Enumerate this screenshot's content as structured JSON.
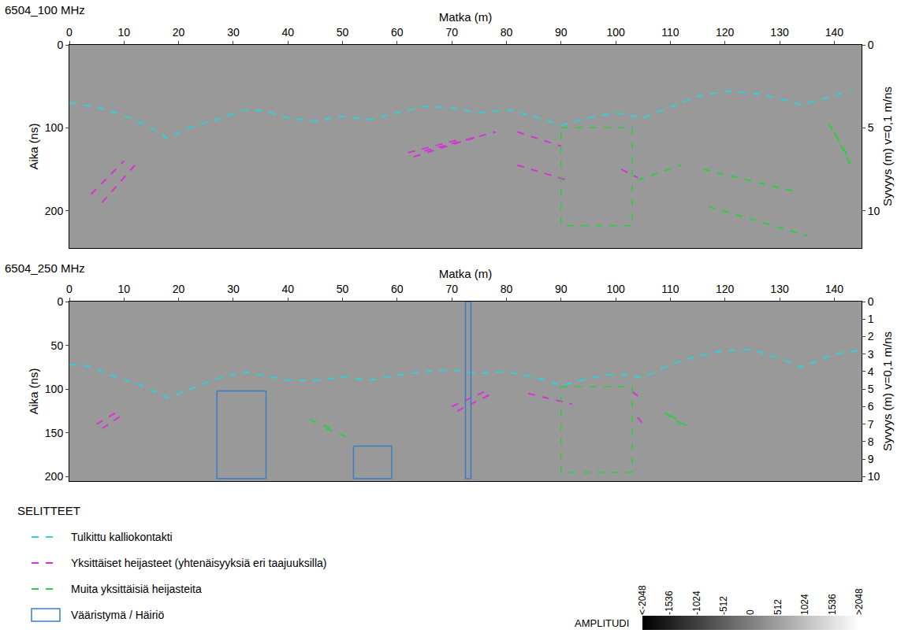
{
  "chart_data": [
    {
      "type": "radargram",
      "title": "6504_100 MHz",
      "x_label": "Matka (m)",
      "y_label": "Aika (ns)",
      "y2_label": "Syvyys (m) v=0,1 m/ns",
      "xlim": [
        0,
        145
      ],
      "xticks": [
        0,
        10,
        20,
        30,
        40,
        50,
        60,
        70,
        80,
        90,
        100,
        110,
        120,
        130,
        140
      ],
      "ylim": [
        0,
        245
      ],
      "yticks": [
        0,
        100,
        200
      ],
      "y2lim": [
        0,
        12.25
      ],
      "y2ticks": [
        0,
        5,
        10
      ],
      "grid": false,
      "series": [
        {
          "name": "Tulkittu kalliokontakti",
          "type": "line",
          "color": "#33d1d6",
          "line_style": "dashed",
          "x": [
            0,
            5,
            10,
            15,
            18,
            22,
            27,
            32,
            36,
            40,
            45,
            50,
            55,
            60,
            65,
            70,
            75,
            80,
            85,
            90,
            95,
            100,
            105,
            110,
            115,
            120,
            125,
            130,
            134,
            138,
            143
          ],
          "y": [
            70,
            75,
            85,
            100,
            113,
            100,
            90,
            78,
            80,
            88,
            92,
            86,
            90,
            82,
            74,
            76,
            82,
            78,
            86,
            97,
            88,
            82,
            88,
            75,
            62,
            56,
            58,
            65,
            72,
            65,
            55
          ]
        },
        {
          "name": "Yksittäiset heijasteet (yhtenäisyyksiä eri taajuuksilla)",
          "type": "line",
          "color": "#d633d6",
          "line_style": "dashed",
          "x": [
            4,
            10,
            null,
            6,
            12,
            null,
            62,
            72,
            null,
            63,
            75,
            null,
            65,
            78,
            null,
            82,
            90,
            null,
            82,
            91,
            null,
            101,
            104
          ],
          "y": [
            180,
            140,
            null,
            190,
            145,
            null,
            130,
            113,
            null,
            135,
            110,
            null,
            128,
            105,
            null,
            105,
            122,
            null,
            145,
            163,
            null,
            150,
            160
          ]
        },
        {
          "name": "Muita yksittäisiä heijasteita",
          "type": "line",
          "color": "#2ecc40",
          "line_style": "dashed",
          "x": [
            104,
            112,
            null,
            116,
            133,
            null,
            117,
            135,
            null,
            139,
            143,
            null,
            140,
            143
          ],
          "y": [
            163,
            145,
            null,
            150,
            177,
            null,
            195,
            230,
            null,
            95,
            140,
            null,
            105,
            145
          ]
        },
        {
          "name": "Muita yksittäisiä heijasteita",
          "type": "box",
          "color": "#2ecc40",
          "line_style": "dashed",
          "x": [
            90,
            103,
            103,
            90,
            90
          ],
          "y": [
            100,
            100,
            218,
            218,
            100
          ]
        }
      ]
    },
    {
      "type": "radargram",
      "title": "6504_250 MHz",
      "x_label": "Matka (m)",
      "y_label": "Aika (ns)",
      "y2_label": "Syvyys (m) v=0,1 m/ns",
      "xlim": [
        0,
        145
      ],
      "xticks": [
        0,
        10,
        20,
        30,
        40,
        50,
        60,
        70,
        80,
        90,
        100,
        110,
        120,
        130,
        140
      ],
      "ylim": [
        0,
        205
      ],
      "yticks": [
        0,
        50,
        100,
        150,
        200
      ],
      "y2lim": [
        0,
        10.25
      ],
      "y2ticks": [
        0,
        1,
        2,
        3,
        4,
        5,
        6,
        7,
        8,
        9,
        10
      ],
      "grid": false,
      "series": [
        {
          "name": "Tulkittu kalliokontakti",
          "type": "line",
          "color": "#33d1d6",
          "line_style": "dashed",
          "x": [
            0,
            3,
            8,
            13,
            18,
            22,
            27,
            32,
            36,
            40,
            45,
            50,
            55,
            60,
            65,
            70,
            75,
            80,
            85,
            90,
            95,
            100,
            105,
            110,
            115,
            120,
            125,
            130,
            134,
            140,
            145
          ],
          "y": [
            72,
            73,
            85,
            95,
            110,
            100,
            88,
            80,
            85,
            90,
            90,
            86,
            90,
            84,
            80,
            78,
            82,
            80,
            86,
            96,
            88,
            82,
            87,
            72,
            62,
            56,
            55,
            65,
            75,
            60,
            55
          ]
        },
        {
          "name": "Yksittäiset heijasteet (yhtenäisyyksiä eri taajuuksilla)",
          "type": "line",
          "color": "#d633d6",
          "line_style": "dashed",
          "x": [
            5,
            9,
            null,
            6,
            10,
            null,
            70,
            77,
            null,
            71,
            78,
            null,
            84,
            92,
            null,
            103,
            105,
            null,
            104,
            105
          ],
          "y": [
            140,
            125,
            null,
            145,
            128,
            null,
            120,
            100,
            null,
            125,
            103,
            null,
            105,
            117,
            null,
            103,
            112,
            null,
            132,
            140
          ]
        },
        {
          "name": "Muita yksittäisiä heijasteita",
          "type": "line",
          "color": "#2ecc40",
          "line_style": "dashed",
          "x": [
            44,
            48,
            null,
            47,
            51,
            null,
            109,
            112,
            null,
            110,
            113
          ],
          "y": [
            135,
            145,
            null,
            145,
            155,
            null,
            127,
            140,
            null,
            130,
            142
          ]
        },
        {
          "name": "Muita yksittäisiä heijasteita",
          "type": "box",
          "color": "#2ecc40",
          "line_style": "dashed",
          "x": [
            90,
            103,
            103,
            90,
            90
          ],
          "y": [
            97,
            97,
            195,
            195,
            97
          ]
        },
        {
          "name": "Vääristymä / Häiriö",
          "type": "box",
          "color": "#3b7dc8",
          "line_style": "solid",
          "x": [
            27,
            36,
            36,
            27,
            27,
            null,
            52,
            59,
            59,
            52,
            52,
            null,
            72.5,
            73.5,
            73.5,
            72.5,
            72.5
          ],
          "y": [
            102,
            102,
            202,
            202,
            102,
            null,
            165,
            165,
            202,
            202,
            165,
            null,
            0,
            0,
            202,
            202,
            0
          ]
        }
      ]
    }
  ],
  "legend": "bottom left",
  "legend_title": "SELITTEET",
  "colorbar": {
    "title": "AMPLITUDI",
    "range": [
      -2048,
      2048
    ],
    "ticks": [
      {
        "value": -2048,
        "label": "<-2048"
      },
      -1536,
      -1024,
      -512,
      0,
      512,
      1024,
      1536,
      {
        "value": 2048,
        "label": ">2048"
      }
    ]
  }
}
